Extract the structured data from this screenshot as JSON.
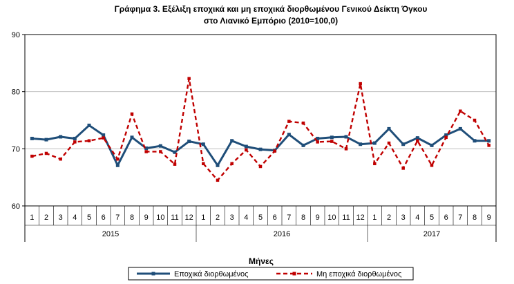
{
  "chart_data": {
    "type": "line",
    "title": "Γράφημα 3. Εξέλιξη εποχικά και μη εποχικά διορθωμένου Γενικού Δείκτη Όγκου",
    "subtitle": "στο Λιανικό Εμπόριο (2010=100,0)",
    "xlabel": "Μήνες",
    "ylabel": "",
    "ylim": [
      60,
      90
    ],
    "yticks": [
      60,
      70,
      80,
      90
    ],
    "grid": true,
    "legend": "bottom",
    "categories": [
      "1",
      "2",
      "3",
      "4",
      "5",
      "6",
      "7",
      "8",
      "9",
      "10",
      "11",
      "12",
      "1",
      "2",
      "3",
      "4",
      "5",
      "6",
      "7",
      "8",
      "9",
      "10",
      "11",
      "12",
      "1",
      "2",
      "3",
      "4",
      "5",
      "6",
      "7",
      "8",
      "9"
    ],
    "groups": [
      {
        "label": "2015",
        "count": 12
      },
      {
        "label": "2016",
        "count": 12
      },
      {
        "label": "2017",
        "count": 9
      }
    ],
    "series": [
      {
        "name": "Εποχικά διορθωμένος",
        "color": "#1f4e79",
        "style": "solid-square",
        "values": [
          71.8,
          71.6,
          72.1,
          71.8,
          74.1,
          72.4,
          67.1,
          72.0,
          70.1,
          70.5,
          69.4,
          71.3,
          70.8,
          67.1,
          71.4,
          70.4,
          69.9,
          69.7,
          72.5,
          70.6,
          71.8,
          72.0,
          72.1,
          70.8,
          71.0,
          73.5,
          70.8,
          71.9,
          70.6,
          72.4,
          73.5,
          71.4,
          71.4
        ]
      },
      {
        "name": "Μη εποχικά διορθωμένος",
        "color": "#c00000",
        "style": "dashed-square",
        "values": [
          68.7,
          69.2,
          68.2,
          71.2,
          71.4,
          71.9,
          68.2,
          76.1,
          69.5,
          69.5,
          67.3,
          82.3,
          67.4,
          64.5,
          67.4,
          69.8,
          66.9,
          69.6,
          74.8,
          74.5,
          71.2,
          71.3,
          70.0,
          81.4,
          67.4,
          71.0,
          66.6,
          71.4,
          67.1,
          72.0,
          76.6,
          75.0,
          70.6
        ]
      }
    ]
  }
}
